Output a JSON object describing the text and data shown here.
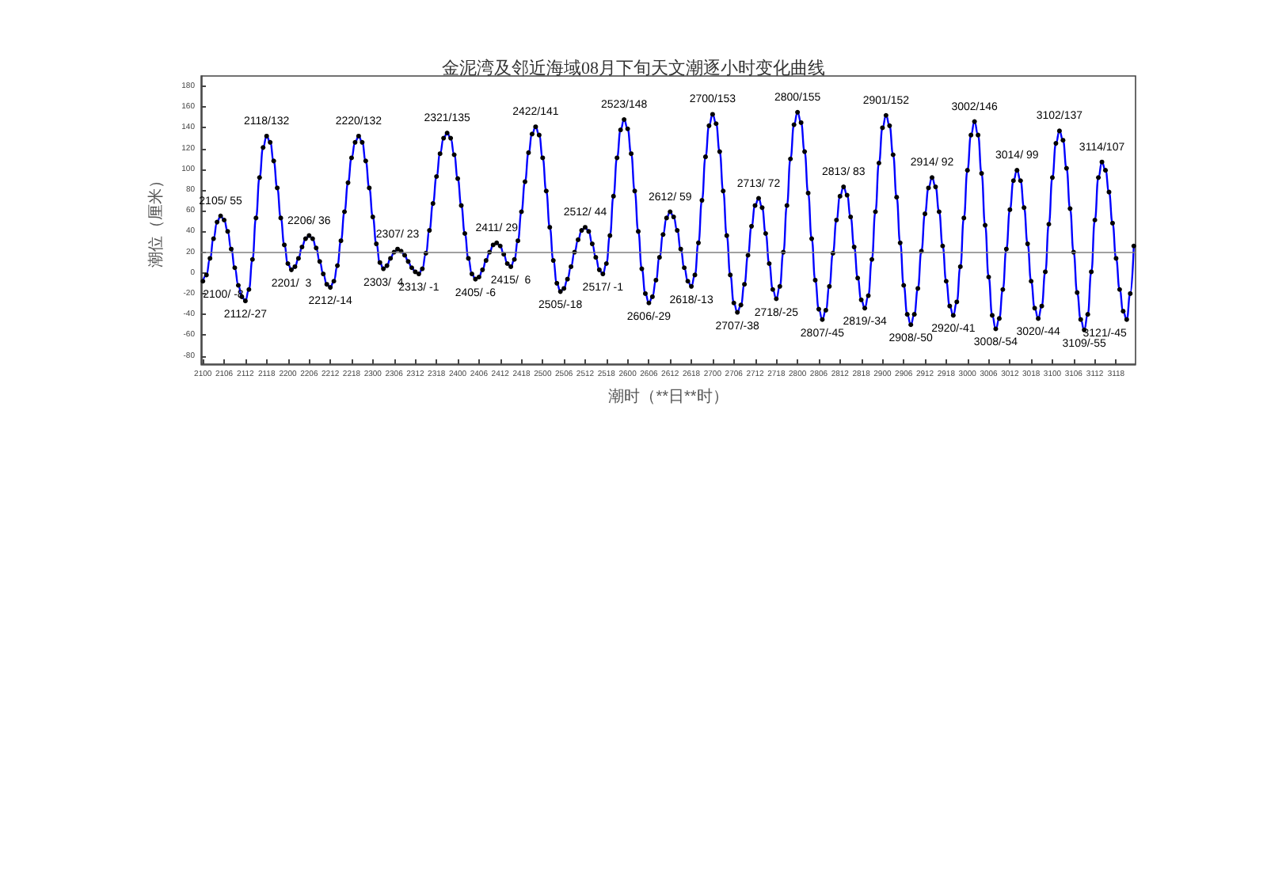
{
  "chart_data": {
    "type": "line",
    "title": "金泥湾及邻近海域08月下旬天文潮逐小时变化曲线",
    "xlabel": "潮时（**日**时）",
    "ylabel": "潮位（厘米）",
    "ylim": [
      -88,
      190
    ],
    "yticks": [
      -80,
      -60,
      -40,
      -20,
      0,
      20,
      40,
      60,
      80,
      100,
      120,
      140,
      160,
      180
    ],
    "ref_lines": [
      {
        "axis": "y",
        "value": 20,
        "color": "#808080"
      }
    ],
    "grid": false,
    "marker": "circle",
    "line_style": "solid",
    "categories": [
      "2100",
      null,
      null,
      null,
      null,
      null,
      "2106",
      null,
      null,
      null,
      null,
      null,
      "2112",
      null,
      null,
      null,
      null,
      null,
      "2118",
      null,
      null,
      null,
      null,
      null,
      "2200",
      null,
      null,
      null,
      null,
      null,
      "2206",
      null,
      null,
      null,
      null,
      null,
      "2212",
      null,
      null,
      null,
      null,
      null,
      "2218",
      null,
      null,
      null,
      null,
      null,
      "2300",
      null,
      null,
      null,
      null,
      null,
      "2306",
      null,
      null,
      null,
      null,
      null,
      "2312",
      null,
      null,
      null,
      null,
      null,
      "2318",
      null,
      null,
      null,
      null,
      null,
      "2400",
      null,
      null,
      null,
      null,
      null,
      "2406",
      null,
      null,
      null,
      null,
      null,
      "2412",
      null,
      null,
      null,
      null,
      null,
      "2418",
      null,
      null,
      null,
      null,
      null,
      "2500",
      null,
      null,
      null,
      null,
      null,
      "2506",
      null,
      null,
      null,
      null,
      null,
      "2512",
      null,
      null,
      null,
      null,
      null,
      "2518",
      null,
      null,
      null,
      null,
      null,
      "2600",
      null,
      null,
      null,
      null,
      null,
      "2606",
      null,
      null,
      null,
      null,
      null,
      "2612",
      null,
      null,
      null,
      null,
      null,
      "2618",
      null,
      null,
      null,
      null,
      null,
      "2700",
      null,
      null,
      null,
      null,
      null,
      "2706",
      null,
      null,
      null,
      null,
      null,
      "2712",
      null,
      null,
      null,
      null,
      null,
      "2718",
      null,
      null,
      null,
      null,
      null,
      "2800",
      null,
      null,
      null,
      null,
      null,
      "2806",
      null,
      null,
      null,
      null,
      null,
      "2812",
      null,
      null,
      null,
      null,
      null,
      "2818",
      null,
      null,
      null,
      null,
      null,
      "2900",
      null,
      null,
      null,
      null,
      null,
      "2906",
      null,
      null,
      null,
      null,
      null,
      "2912",
      null,
      null,
      null,
      null,
      null,
      "2918",
      null,
      null,
      null,
      null,
      null,
      "3000",
      null,
      null,
      null,
      null,
      null,
      "3006",
      null,
      null,
      null,
      null,
      null,
      "3012",
      null,
      null,
      null,
      null,
      null,
      "3018",
      null,
      null,
      null,
      null,
      null,
      "3100",
      null,
      null,
      null,
      null,
      null,
      "3106",
      null,
      null,
      null,
      null,
      null,
      "3112",
      null,
      null,
      null,
      null,
      null,
      "3118",
      null,
      null,
      null,
      null,
      null
    ],
    "series": [
      {
        "color": "#0000ff",
        "values": [
          -8,
          -2,
          14,
          33,
          49,
          55,
          51,
          40,
          23,
          5,
          -12,
          -23,
          -27,
          -16,
          13,
          53,
          92,
          121,
          132,
          126,
          108,
          82,
          53,
          27,
          9,
          3,
          6,
          14,
          25,
          33,
          36,
          33,
          24,
          11,
          -1,
          -11,
          -14,
          -8,
          7,
          31,
          59,
          87,
          111,
          126,
          132,
          126,
          108,
          82,
          54,
          28,
          10,
          4,
          7,
          14,
          20,
          23,
          21,
          17,
          11,
          5,
          1,
          -1,
          4,
          19,
          41,
          67,
          93,
          115,
          130,
          135,
          130,
          114,
          91,
          65,
          38,
          14,
          -1,
          -6,
          -4,
          3,
          12,
          20,
          27,
          29,
          26,
          18,
          9,
          6,
          13,
          31,
          59,
          88,
          116,
          134,
          141,
          133,
          111,
          79,
          44,
          12,
          -10,
          -18,
          -15,
          -6,
          6,
          20,
          32,
          41,
          44,
          40,
          28,
          15,
          3,
          -1,
          9,
          36,
          74,
          111,
          138,
          148,
          139,
          115,
          79,
          40,
          4,
          -20,
          -29,
          -23,
          -7,
          15,
          37,
          53,
          59,
          54,
          41,
          23,
          5,
          -8,
          -13,
          -2,
          29,
          70,
          112,
          142,
          153,
          144,
          117,
          79,
          36,
          -2,
          -29,
          -38,
          -31,
          -11,
          17,
          45,
          65,
          72,
          63,
          38,
          9,
          -16,
          -25,
          -13,
          20,
          65,
          110,
          143,
          155,
          145,
          117,
          77,
          33,
          -7,
          -35,
          -45,
          -36,
          -13,
          19,
          51,
          74,
          83,
          75,
          54,
          25,
          -5,
          -26,
          -34,
          -22,
          13,
          59,
          106,
          140,
          152,
          142,
          114,
          73,
          29,
          -12,
          -40,
          -50,
          -40,
          -15,
          21,
          57,
          82,
          92,
          83,
          59,
          26,
          -8,
          -32,
          -41,
          -28,
          6,
          53,
          99,
          133,
          146,
          133,
          96,
          46,
          -4,
          -41,
          -54,
          -44,
          -16,
          23,
          61,
          89,
          99,
          89,
          63,
          28,
          -8,
          -34,
          -44,
          -32,
          1,
          47,
          92,
          125,
          137,
          128,
          101,
          62,
          20,
          -19,
          -45,
          -55,
          -40,
          1,
          51,
          92,
          107,
          99,
          78,
          48,
          14,
          -16,
          -37,
          -45,
          -20,
          26
        ],
        "value_labels": [
          "2100/ -8",
          null,
          null,
          null,
          null,
          "2105/ 55",
          null,
          null,
          null,
          null,
          null,
          null,
          "2112/-27",
          null,
          null,
          null,
          null,
          null,
          "2118/132",
          null,
          null,
          null,
          null,
          null,
          null,
          "2201/  3",
          null,
          null,
          null,
          null,
          "2206/ 36",
          null,
          null,
          null,
          null,
          null,
          "2212/-14",
          null,
          null,
          null,
          null,
          null,
          null,
          null,
          "2220/132",
          null,
          null,
          null,
          null,
          null,
          null,
          "2303/  4",
          null,
          null,
          null,
          "2307/ 23",
          null,
          null,
          null,
          null,
          null,
          "2313/ -1",
          null,
          null,
          null,
          null,
          null,
          null,
          null,
          "2321/135",
          null,
          null,
          null,
          null,
          null,
          null,
          null,
          "2405/ -6",
          null,
          null,
          null,
          null,
          null,
          "2411/ 29",
          null,
          null,
          null,
          "2415/  6",
          null,
          null,
          null,
          null,
          null,
          null,
          "2422/141",
          null,
          null,
          null,
          null,
          null,
          null,
          "2505/-18",
          null,
          null,
          null,
          null,
          null,
          null,
          "2512/ 44",
          null,
          null,
          null,
          null,
          "2517/ -1",
          null,
          null,
          null,
          null,
          null,
          "2523/148",
          null,
          null,
          null,
          null,
          null,
          null,
          "2606/-29",
          null,
          null,
          null,
          null,
          null,
          "2612/ 59",
          null,
          null,
          null,
          null,
          null,
          "2618/-13",
          null,
          null,
          null,
          null,
          null,
          "2700/153",
          null,
          null,
          null,
          null,
          null,
          null,
          "2707/-38",
          null,
          null,
          null,
          null,
          null,
          "2713/ 72",
          null,
          null,
          null,
          null,
          "2718/-25",
          null,
          null,
          null,
          null,
          null,
          "2800/155",
          null,
          null,
          null,
          null,
          null,
          null,
          "2807/-45",
          null,
          null,
          null,
          null,
          null,
          "2813/ 83",
          null,
          null,
          null,
          null,
          null,
          "2819/-34",
          null,
          null,
          null,
          null,
          null,
          "2901/152",
          null,
          null,
          null,
          null,
          null,
          null,
          "2908/-50",
          null,
          null,
          null,
          null,
          null,
          "2914/ 92",
          null,
          null,
          null,
          null,
          null,
          "2920/-41",
          null,
          null,
          null,
          null,
          null,
          "3002/146",
          null,
          null,
          null,
          null,
          null,
          "3008/-54",
          null,
          null,
          null,
          null,
          null,
          "3014/ 99",
          null,
          null,
          null,
          null,
          null,
          "3020/-44",
          null,
          null,
          null,
          null,
          null,
          "3102/137",
          null,
          null,
          null,
          null,
          null,
          null,
          "3109/-55",
          null,
          null,
          null,
          null,
          "3114/107",
          null,
          null,
          null,
          null,
          null,
          null,
          "3121/-45",
          null,
          null
        ]
      }
    ]
  }
}
